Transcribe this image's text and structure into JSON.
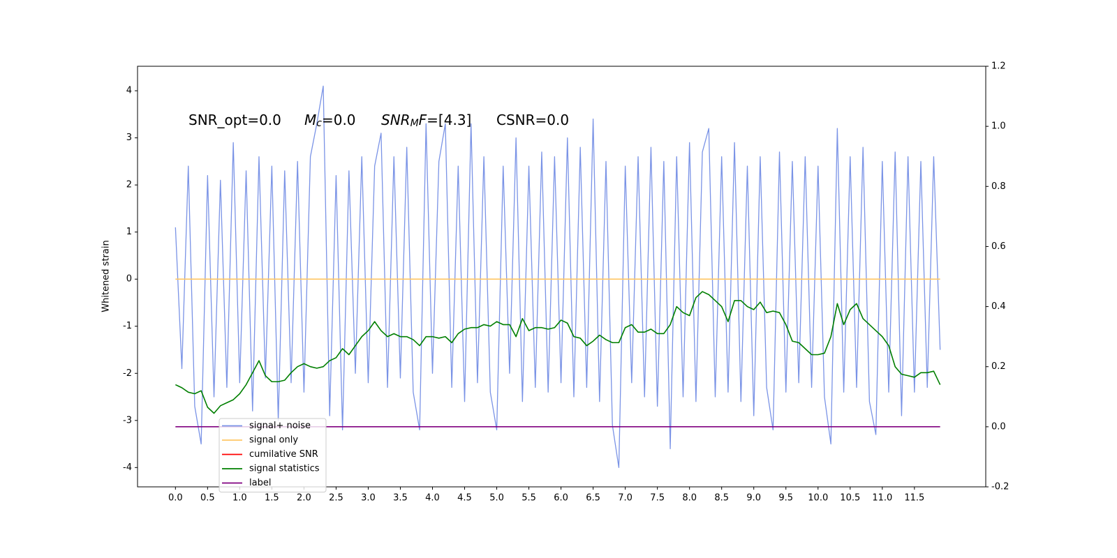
{
  "chart_data": {
    "type": "line",
    "ylabel": "Whitened strain",
    "annotations": [
      {
        "parts": [
          {
            "text": "SNR_opt=0.0"
          }
        ]
      },
      {
        "parts": [
          {
            "text": "M",
            "style": "italic"
          },
          {
            "text": "c",
            "style": "italic-sub"
          },
          {
            "text": "=0.0"
          }
        ]
      },
      {
        "parts": [
          {
            "text": "SNR",
            "style": "italic"
          },
          {
            "text": "M",
            "style": "italic-sub"
          },
          {
            "text": "F",
            "style": "italic"
          },
          {
            "text": "=[4.3]"
          }
        ]
      },
      {
        "parts": [
          {
            "text": "CSNR=0.0"
          }
        ]
      }
    ],
    "x": [
      0,
      0.1,
      0.2,
      0.3,
      0.4,
      0.5,
      0.6,
      0.7,
      0.8,
      0.9,
      1,
      1.1,
      1.2,
      1.3,
      1.4,
      1.5,
      1.6,
      1.7,
      1.8,
      1.9,
      2,
      2.1,
      2.2,
      2.3,
      2.4,
      2.5,
      2.6,
      2.7,
      2.8,
      2.9,
      3,
      3.1,
      3.2,
      3.3,
      3.4,
      3.5,
      3.6,
      3.7,
      3.8,
      3.9,
      4,
      4.1,
      4.2,
      4.3,
      4.4,
      4.5,
      4.6,
      4.7,
      4.8,
      4.9,
      5,
      5.1,
      5.2,
      5.3,
      5.4,
      5.5,
      5.6,
      5.7,
      5.8,
      5.9,
      6,
      6.1,
      6.2,
      6.3,
      6.4,
      6.5,
      6.6,
      6.7,
      6.8,
      6.9,
      7,
      7.1,
      7.2,
      7.3,
      7.4,
      7.5,
      7.6,
      7.7,
      7.8,
      7.9,
      8,
      8.1,
      8.2,
      8.3,
      8.4,
      8.5,
      8.6,
      8.7,
      8.8,
      8.9,
      9,
      9.1,
      9.2,
      9.3,
      9.4,
      9.5,
      9.6,
      9.7,
      9.8,
      9.9,
      10,
      10.1,
      10.2,
      10.3,
      10.4,
      10.5,
      10.6,
      10.7,
      10.8,
      10.9,
      11,
      11.1,
      11.2,
      11.3,
      11.4,
      11.5,
      11.6,
      11.7,
      11.8,
      11.9
    ],
    "series": [
      {
        "name": "signal+ noise",
        "color": "#7a93e6",
        "axis": "y",
        "values": [
          1.1,
          -1.9,
          2.4,
          -2.7,
          -3.5,
          2.2,
          -2.5,
          2.1,
          -2.3,
          2.9,
          -2.2,
          2.3,
          -2.8,
          2.6,
          -2.1,
          2.4,
          -3.0,
          2.3,
          -2.2,
          2.5,
          -2.4,
          2.6,
          3.3,
          4.1,
          -2.9,
          2.2,
          -3.2,
          2.3,
          -2.0,
          2.6,
          -2.2,
          2.4,
          3.1,
          -2.3,
          2.6,
          -2.1,
          2.8,
          -2.4,
          -3.2,
          3.3,
          -2.0,
          2.5,
          3.3,
          -2.3,
          2.4,
          -2.6,
          3.3,
          -2.2,
          2.6,
          -2.4,
          -3.2,
          2.4,
          -2.0,
          3.0,
          -2.6,
          2.4,
          -2.3,
          2.7,
          -2.4,
          2.6,
          -2.2,
          3.0,
          -2.5,
          2.8,
          -2.3,
          3.4,
          -2.6,
          2.5,
          -3.1,
          -4.0,
          2.4,
          -2.2,
          2.6,
          -2.5,
          2.8,
          -2.7,
          2.5,
          -3.6,
          2.6,
          -2.5,
          2.9,
          -2.6,
          2.7,
          3.2,
          -2.5,
          2.6,
          -2.4,
          2.9,
          -2.6,
          2.4,
          -2.9,
          2.6,
          -2.3,
          -3.2,
          2.7,
          -2.4,
          2.5,
          -2.2,
          2.6,
          -2.3,
          2.4,
          -2.5,
          -3.5,
          3.2,
          -2.4,
          2.6,
          -2.3,
          2.8,
          -2.6,
          -3.3,
          2.5,
          -2.4,
          2.7,
          -2.9,
          2.6,
          -2.4,
          2.5,
          -2.3,
          2.6,
          -1.5
        ]
      },
      {
        "name": "signal only",
        "color": "#ffc766",
        "axis": "y",
        "values": [
          0,
          0,
          0,
          0,
          0,
          0,
          0,
          0,
          0,
          0,
          0,
          0,
          0,
          0,
          0,
          0,
          0,
          0,
          0,
          0,
          0,
          0,
          0,
          0,
          0,
          0,
          0,
          0,
          0,
          0,
          0,
          0,
          0,
          0,
          0,
          0,
          0,
          0,
          0,
          0,
          0,
          0,
          0,
          0,
          0,
          0,
          0,
          0,
          0,
          0,
          0,
          0,
          0,
          0,
          0,
          0,
          0,
          0,
          0,
          0,
          0,
          0,
          0,
          0,
          0,
          0,
          0,
          0,
          0,
          0,
          0,
          0,
          0,
          0,
          0,
          0,
          0,
          0,
          0,
          0,
          0,
          0,
          0,
          0,
          0,
          0,
          0,
          0,
          0,
          0,
          0,
          0,
          0,
          0,
          0,
          0,
          0,
          0,
          0,
          0,
          0,
          0,
          0,
          0,
          0,
          0,
          0,
          0,
          0,
          0,
          0,
          0,
          0,
          0,
          0,
          0,
          0,
          0,
          0,
          0
        ]
      },
      {
        "name": "cumilative SNR",
        "color": "#ff0000",
        "axis": "y2",
        "values": [
          null,
          null,
          null,
          null,
          null,
          null,
          null,
          null,
          null,
          null,
          null,
          null,
          null,
          null,
          null,
          null,
          null,
          null,
          null,
          null,
          null,
          null,
          null,
          null,
          null,
          null,
          null,
          null,
          null,
          null,
          null,
          null,
          null,
          null,
          null,
          null,
          null,
          null,
          null,
          null,
          null,
          null,
          null,
          null,
          null,
          null,
          null,
          null,
          null,
          null,
          null,
          null,
          null,
          null,
          null,
          null,
          null,
          null,
          null,
          null,
          null,
          null,
          null,
          null,
          null,
          null,
          null,
          null,
          null,
          null,
          null,
          null,
          null,
          null,
          null,
          null,
          null,
          null,
          null,
          null,
          null,
          null,
          null,
          null,
          null,
          null,
          null,
          null,
          null,
          null,
          null,
          null,
          null,
          null,
          null,
          null,
          null,
          null,
          null,
          null,
          null,
          null,
          null,
          null,
          null,
          null,
          null,
          null,
          null,
          null,
          null,
          null,
          null,
          null,
          null,
          null,
          null,
          null,
          null,
          null
        ]
      },
      {
        "name": "signal statistics",
        "color": "#007f00",
        "axis": "y2",
        "values": [
          0.14,
          0.13,
          0.115,
          0.11,
          0.12,
          0.065,
          0.045,
          0.07,
          0.08,
          0.09,
          0.11,
          0.14,
          0.18,
          0.22,
          0.17,
          0.15,
          0.15,
          0.155,
          0.18,
          0.2,
          0.21,
          0.2,
          0.195,
          0.2,
          0.22,
          0.23,
          0.26,
          0.24,
          0.27,
          0.3,
          0.32,
          0.35,
          0.32,
          0.3,
          0.31,
          0.3,
          0.3,
          0.29,
          0.27,
          0.3,
          0.3,
          0.295,
          0.3,
          0.28,
          0.31,
          0.325,
          0.33,
          0.33,
          0.34,
          0.335,
          0.35,
          0.34,
          0.34,
          0.3,
          0.36,
          0.32,
          0.33,
          0.33,
          0.325,
          0.33,
          0.355,
          0.345,
          0.3,
          0.295,
          0.27,
          0.285,
          0.305,
          0.29,
          0.28,
          0.28,
          0.33,
          0.34,
          0.315,
          0.315,
          0.325,
          0.31,
          0.31,
          0.34,
          0.4,
          0.38,
          0.37,
          0.43,
          0.45,
          0.44,
          0.42,
          0.4,
          0.35,
          0.42,
          0.42,
          0.4,
          0.39,
          0.415,
          0.38,
          0.385,
          0.38,
          0.34,
          0.285,
          0.28,
          0.26,
          0.24,
          0.24,
          0.245,
          0.3,
          0.41,
          0.34,
          0.39,
          0.41,
          0.36,
          0.34,
          0.32,
          0.3,
          0.27,
          0.2,
          0.175,
          0.17,
          0.165,
          0.18,
          0.18,
          0.185,
          0.14
        ]
      },
      {
        "name": "label",
        "color": "#800080",
        "axis": "y2",
        "values": [
          0,
          0,
          0,
          0,
          0,
          0,
          0,
          0,
          0,
          0,
          0,
          0,
          0,
          0,
          0,
          0,
          0,
          0,
          0,
          0,
          0,
          0,
          0,
          0,
          0,
          0,
          0,
          0,
          0,
          0,
          0,
          0,
          0,
          0,
          0,
          0,
          0,
          0,
          0,
          0,
          0,
          0,
          0,
          0,
          0,
          0,
          0,
          0,
          0,
          0,
          0,
          0,
          0,
          0,
          0,
          0,
          0,
          0,
          0,
          0,
          0,
          0,
          0,
          0,
          0,
          0,
          0,
          0,
          0,
          0,
          0,
          0,
          0,
          0,
          0,
          0,
          0,
          0,
          0,
          0,
          0,
          0,
          0,
          0,
          0,
          0,
          0,
          0,
          0,
          0,
          0,
          0,
          0,
          0,
          0,
          0,
          0,
          0,
          0,
          0,
          0,
          0,
          0,
          0,
          0,
          0,
          0,
          0,
          0,
          0,
          0,
          0,
          0,
          0,
          0,
          0,
          0,
          0,
          0,
          0
        ]
      }
    ],
    "xlim": [
      -0.59,
      12.61
    ],
    "xticks": [
      {
        "value": 0,
        "label": "0.0"
      },
      0.5,
      {
        "value": 1,
        "label": "1.0"
      },
      1.5,
      {
        "value": 2,
        "label": "2.0"
      },
      2.5,
      {
        "value": 3,
        "label": "3.0"
      },
      3.5,
      {
        "value": 4,
        "label": "4.0"
      },
      4.5,
      {
        "value": 5,
        "label": "5.0"
      },
      5.5,
      {
        "value": 6,
        "label": "6.0"
      },
      6.5,
      {
        "value": 7,
        "label": "7.0"
      },
      7.5,
      {
        "value": 8,
        "label": "8.0"
      },
      8.5,
      {
        "value": 9,
        "label": "9.0"
      },
      9.5,
      {
        "value": 10,
        "label": "10.0"
      },
      10.5,
      {
        "value": 11,
        "label": "11.0"
      },
      11.5
    ],
    "ylim": [
      -4.41,
      4.52
    ],
    "yticks": [
      -4,
      -3,
      -2,
      -1,
      0,
      1,
      2,
      3,
      4
    ],
    "y2lim": [
      -0.2,
      1.2
    ],
    "y2ticks": [
      -0.2,
      {
        "value": 0,
        "label": "0.0"
      },
      0.2,
      0.4,
      0.6,
      0.8,
      {
        "value": 1,
        "label": "1.0"
      },
      1.2
    ],
    "legend": "lower left"
  }
}
